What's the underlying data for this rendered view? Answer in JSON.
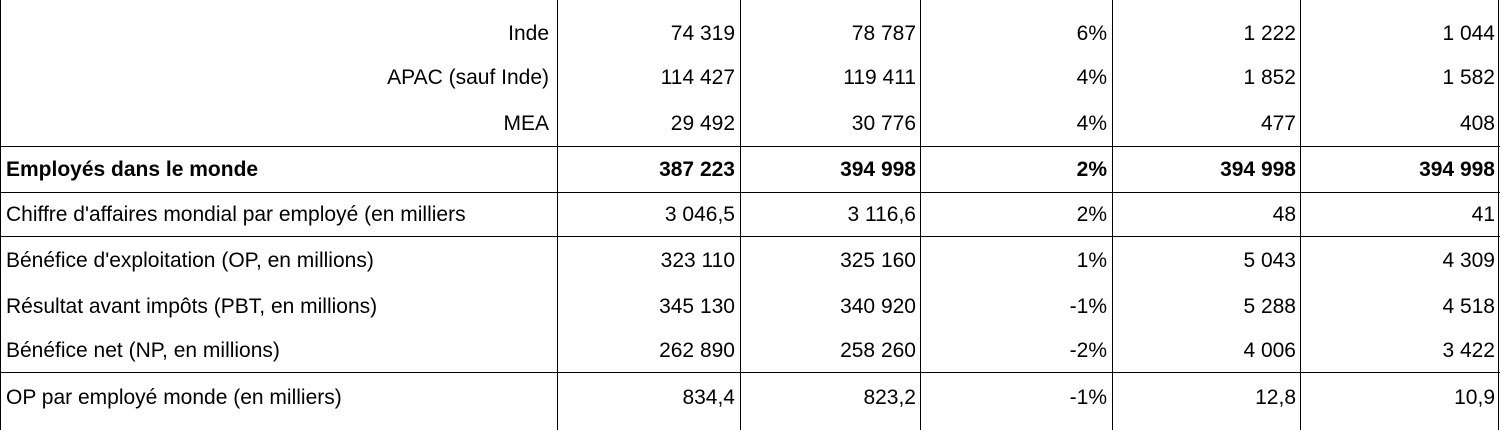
{
  "table": {
    "rows": [
      {
        "label": "Inde",
        "values": [
          "74 319",
          "78 787",
          "6%",
          "1 222",
          "1 044"
        ]
      },
      {
        "label": "APAC (sauf Inde)",
        "values": [
          "114 427",
          "119 411",
          "4%",
          "1 852",
          "1 582"
        ]
      },
      {
        "label": "MEA",
        "values": [
          "29 492",
          "30 776",
          "4%",
          "477",
          "408"
        ]
      },
      {
        "label": "Employés dans le monde",
        "values": [
          "387 223",
          "394 998",
          "2%",
          "394 998",
          "394 998"
        ]
      },
      {
        "label": "Chiffre d'affaires mondial par employé (en milliers",
        "values": [
          "3 046,5",
          "3 116,6",
          "2%",
          "48",
          "41"
        ]
      },
      {
        "label": "Bénéfice d'exploitation (OP, en millions)",
        "values": [
          "323 110",
          "325 160",
          "1%",
          "5 043",
          "4 309"
        ]
      },
      {
        "label": "Résultat avant impôts (PBT, en millions)",
        "values": [
          "345 130",
          "340 920",
          "-1%",
          "5 288",
          "4 518"
        ]
      },
      {
        "label": "Bénéfice net (NP, en millions)",
        "values": [
          "262 890",
          "258 260",
          "-2%",
          "4 006",
          "3 422"
        ]
      },
      {
        "label": "OP par employé monde (en milliers)",
        "values": [
          "834,4",
          "823,2",
          "-1%",
          "12,8",
          "10,9"
        ]
      }
    ]
  }
}
